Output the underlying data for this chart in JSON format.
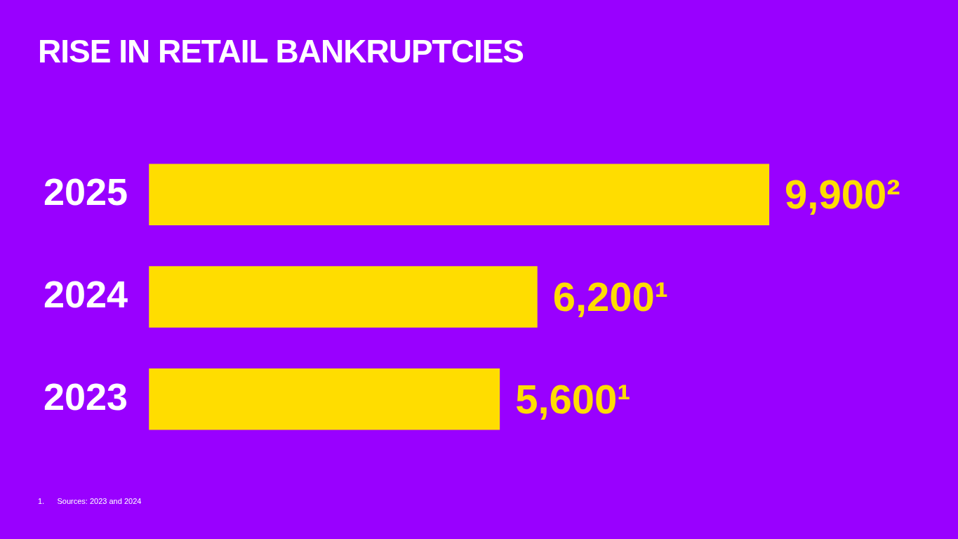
{
  "chart_data": {
    "type": "bar",
    "orientation": "horizontal",
    "title": "RISE IN RETAIL BANKRUPTCIES",
    "categories": [
      "2025",
      "2024",
      "2023"
    ],
    "values": [
      9900,
      6200,
      5600
    ],
    "value_labels": [
      "9,900²",
      "6,200¹",
      "5,600¹"
    ],
    "color": "#ffdd00",
    "grid": false,
    "legend": false,
    "tick_labels": "y",
    "annotations": [
      "1.      Sources: 2023 and 2024"
    ]
  }
}
